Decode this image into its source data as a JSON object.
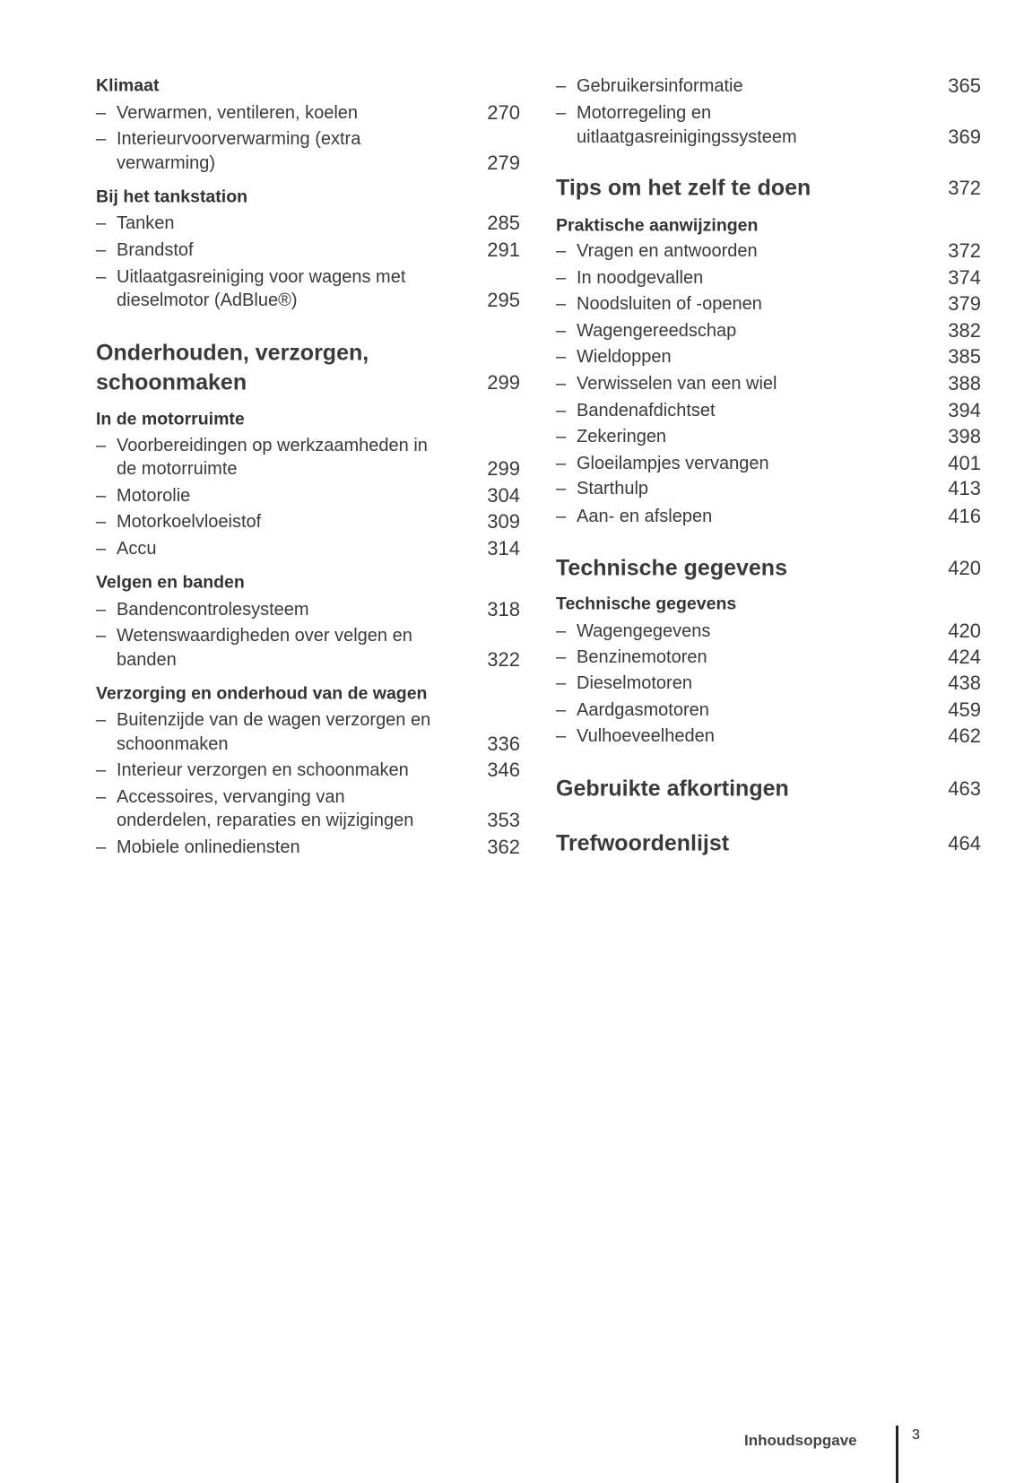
{
  "left": [
    {
      "kind": "sub",
      "lines": [
        "Klimaat"
      ]
    },
    {
      "kind": "item",
      "lines": [
        "Verwarmen, ventileren, koelen"
      ],
      "page": "270"
    },
    {
      "kind": "item",
      "lines": [
        "Interieurvoorverwarming (extra",
        "verwarming)"
      ],
      "page": "279"
    },
    {
      "kind": "sub",
      "lines": [
        "Bij het tankstation"
      ]
    },
    {
      "kind": "item",
      "lines": [
        "Tanken"
      ],
      "page": "285"
    },
    {
      "kind": "item",
      "lines": [
        "Brandstof"
      ],
      "page": "291"
    },
    {
      "kind": "item",
      "lines": [
        "Uitlaatgasreiniging voor wagens met",
        "dieselmotor (AdBlue®)"
      ],
      "page": "295"
    },
    {
      "kind": "head",
      "lines": [
        "Onderhouden, verzorgen,",
        "schoonmaken"
      ],
      "page": "299"
    },
    {
      "kind": "sub",
      "lines": [
        "In de motorruimte"
      ]
    },
    {
      "kind": "item",
      "lines": [
        "Voorbereidingen op werkzaamheden in",
        "de motorruimte"
      ],
      "page": "299"
    },
    {
      "kind": "item",
      "lines": [
        "Motorolie"
      ],
      "page": "304"
    },
    {
      "kind": "item",
      "lines": [
        "Motorkoelvloeistof"
      ],
      "page": "309"
    },
    {
      "kind": "item",
      "lines": [
        "Accu"
      ],
      "page": "314"
    },
    {
      "kind": "sub",
      "lines": [
        "Velgen en banden"
      ]
    },
    {
      "kind": "item",
      "lines": [
        "Bandencontrolesysteem"
      ],
      "page": "318"
    },
    {
      "kind": "item",
      "lines": [
        "Wetenswaardigheden over velgen en",
        "banden"
      ],
      "page": "322"
    },
    {
      "kind": "sub",
      "lines": [
        "Verzorging en onderhoud van de wagen"
      ]
    },
    {
      "kind": "item",
      "lines": [
        "Buitenzijde van de wagen verzorgen en",
        "schoonmaken"
      ],
      "page": "336"
    },
    {
      "kind": "item",
      "lines": [
        "Interieur verzorgen en schoonmaken"
      ],
      "page": "346"
    },
    {
      "kind": "item",
      "lines": [
        "Accessoires, vervanging van",
        "onderdelen, reparaties en wijzigingen"
      ],
      "page": "353"
    },
    {
      "kind": "item",
      "lines": [
        "Mobiele onlinediensten"
      ],
      "page": "362"
    }
  ],
  "right": [
    {
      "kind": "item",
      "lines": [
        "Gebruikersinformatie"
      ],
      "page": "365"
    },
    {
      "kind": "item",
      "lines": [
        "Motorregeling en",
        "uitlaatgasreinigingssysteem"
      ],
      "page": "369"
    },
    {
      "kind": "head",
      "lines": [
        "Tips om het zelf te doen"
      ],
      "page": "372"
    },
    {
      "kind": "sub",
      "lines": [
        "Praktische aanwijzingen"
      ]
    },
    {
      "kind": "item",
      "lines": [
        "Vragen en antwoorden"
      ],
      "page": "372"
    },
    {
      "kind": "item",
      "lines": [
        "In noodgevallen"
      ],
      "page": "374"
    },
    {
      "kind": "item",
      "lines": [
        "Noodsluiten of -openen"
      ],
      "page": "379"
    },
    {
      "kind": "item",
      "lines": [
        "Wagengereedschap"
      ],
      "page": "382"
    },
    {
      "kind": "item",
      "lines": [
        "Wieldoppen"
      ],
      "page": "385"
    },
    {
      "kind": "item",
      "lines": [
        "Verwisselen van een wiel"
      ],
      "page": "388"
    },
    {
      "kind": "item",
      "lines": [
        "Bandenafdichtset"
      ],
      "page": "394"
    },
    {
      "kind": "item",
      "lines": [
        "Zekeringen"
      ],
      "page": "398"
    },
    {
      "kind": "item",
      "lines": [
        "Gloeilampjes vervangen"
      ],
      "page": "401"
    },
    {
      "kind": "item",
      "lines": [
        "Starthulp"
      ],
      "page": "413"
    },
    {
      "kind": "item",
      "lines": [
        "Aan- en afslepen"
      ],
      "page": "416"
    },
    {
      "kind": "head",
      "lines": [
        "Technische gegevens"
      ],
      "page": "420"
    },
    {
      "kind": "sub",
      "lines": [
        "Technische gegevens"
      ]
    },
    {
      "kind": "item",
      "lines": [
        "Wagengegevens"
      ],
      "page": "420"
    },
    {
      "kind": "item",
      "lines": [
        "Benzinemotoren"
      ],
      "page": "424"
    },
    {
      "kind": "item",
      "lines": [
        "Dieselmotoren"
      ],
      "page": "438"
    },
    {
      "kind": "item",
      "lines": [
        "Aardgasmotoren"
      ],
      "page": "459"
    },
    {
      "kind": "item",
      "lines": [
        "Vulhoeveelheden"
      ],
      "page": "462"
    },
    {
      "kind": "head",
      "lines": [
        "Gebruikte afkortingen"
      ],
      "page": "463"
    },
    {
      "kind": "head",
      "lines": [
        "Trefwoordenlijst"
      ],
      "page": "464"
    }
  ],
  "dash": "–",
  "footer": {
    "section": "Inhoudsopgave",
    "page": "3"
  }
}
